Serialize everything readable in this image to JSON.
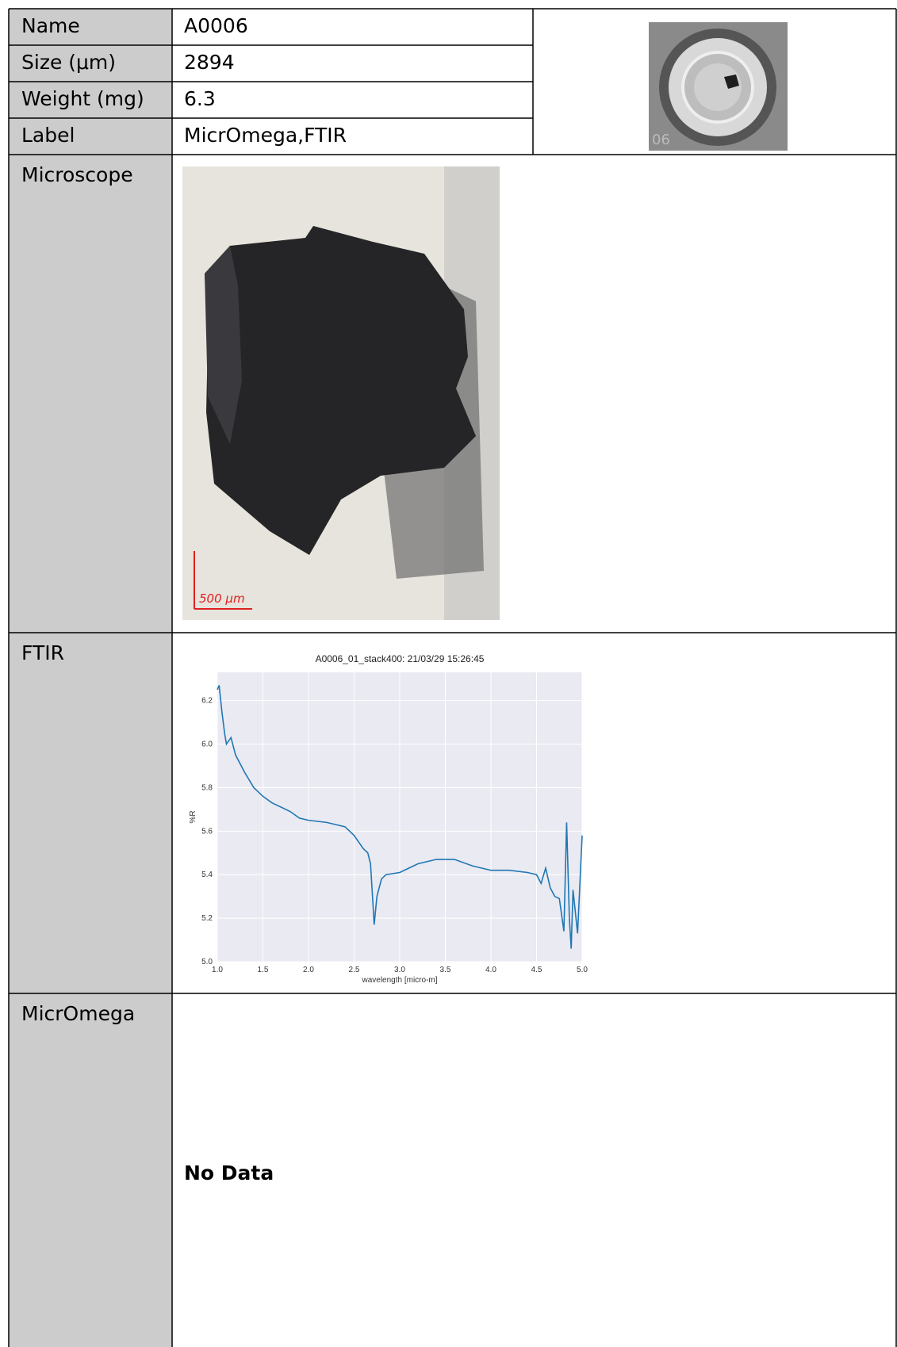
{
  "table": {
    "rows": [
      {
        "label": "Name",
        "value": "A0006"
      },
      {
        "label": "Size (μm)",
        "value": "2894"
      },
      {
        "label": "Weight (mg)",
        "value": "6.3"
      },
      {
        "label": "Label",
        "value": "MicrOmega,FTIR"
      }
    ]
  },
  "thumbnail": {
    "caption": "06"
  },
  "microscope": {
    "label": "Microscope",
    "scale_bar": "500 μm"
  },
  "ftir": {
    "label": "FTIR"
  },
  "micromega": {
    "label": "MicrOmega",
    "value": "No Data"
  },
  "chart_data": {
    "type": "line",
    "title": "A0006_01_stack400:  21/03/29 15:26:45",
    "x_label": "wavelength [micro-m]",
    "y_label": "%R",
    "x": [
      1.0,
      1.02,
      1.05,
      1.08,
      1.1,
      1.15,
      1.2,
      1.3,
      1.4,
      1.5,
      1.6,
      1.7,
      1.8,
      1.9,
      2.0,
      2.2,
      2.4,
      2.5,
      2.6,
      2.65,
      2.68,
      2.72,
      2.75,
      2.8,
      2.85,
      3.0,
      3.2,
      3.4,
      3.6,
      3.8,
      4.0,
      4.2,
      4.4,
      4.5,
      4.55,
      4.6,
      4.65,
      4.7,
      4.75,
      4.8,
      4.83,
      4.86,
      4.88,
      4.9,
      4.95,
      5.0
    ],
    "series": [
      {
        "color": "#1f77b4",
        "values": [
          6.25,
          6.27,
          6.15,
          6.05,
          6.0,
          6.03,
          5.95,
          5.87,
          5.8,
          5.76,
          5.73,
          5.71,
          5.69,
          5.66,
          5.65,
          5.64,
          5.62,
          5.58,
          5.52,
          5.5,
          5.45,
          5.17,
          5.3,
          5.38,
          5.4,
          5.41,
          5.45,
          5.47,
          5.47,
          5.44,
          5.42,
          5.42,
          5.41,
          5.4,
          5.36,
          5.43,
          5.34,
          5.3,
          5.29,
          5.14,
          5.64,
          5.2,
          5.06,
          5.33,
          5.13,
          5.58
        ]
      }
    ],
    "xlim": [
      1.0,
      5.0
    ],
    "ylim": [
      5.0,
      6.33
    ],
    "xticks": [
      {
        "value": 1,
        "label": "1.0"
      },
      1.5,
      {
        "value": 2,
        "label": "2.0"
      },
      2.5,
      {
        "value": 3,
        "label": "3.0"
      },
      3.5,
      {
        "value": 4,
        "label": "4.0"
      },
      4.5,
      {
        "value": 5,
        "label": "5.0"
      }
    ],
    "yticks": [
      {
        "value": 5,
        "label": "5.0"
      },
      5.2,
      5.4,
      5.6,
      5.8,
      {
        "value": 6,
        "label": "6.0"
      },
      6.2
    ],
    "grid": true
  }
}
